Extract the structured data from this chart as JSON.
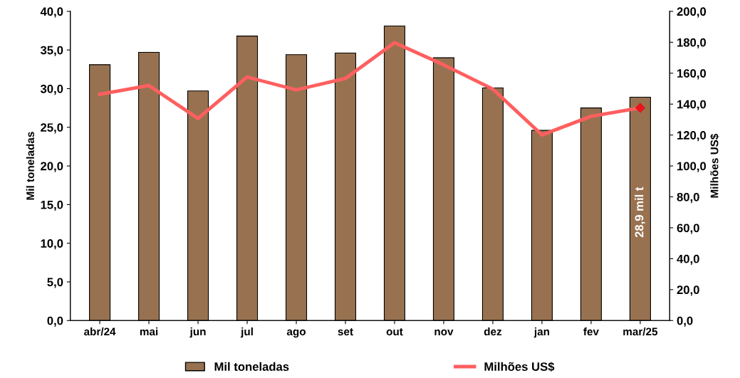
{
  "chart_data": {
    "type": "bar",
    "ylabel": "Mil toneladas",
    "y2label": "Milhões US$",
    "categories": [
      "abr/24",
      "mai",
      "jun",
      "jul",
      "ago",
      "set",
      "out",
      "nov",
      "dez",
      "jan",
      "fev",
      "mar/25"
    ],
    "series": [
      {
        "name": "Mil toneladas",
        "color": "#987250",
        "values": [
          33.1,
          34.7,
          29.7,
          36.8,
          34.4,
          34.6,
          38.1,
          34.0,
          30.1,
          24.6,
          27.5,
          28.9
        ]
      },
      {
        "name": "Milhões US$",
        "type": "line",
        "axis": "y2",
        "color": "#ff5f5f",
        "marker": "none",
        "line_style": "solid",
        "values": [
          146.4,
          152.0,
          130.7,
          157.5,
          149.2,
          156.6,
          179.7,
          165.4,
          149.7,
          120.1,
          132.1,
          137.6
        ]
      },
      {
        "type": "scatter",
        "axis": "y2",
        "color": "#e8141c",
        "marker": "diamond",
        "x": [
          "mar/25"
        ],
        "values": [
          137.6
        ]
      }
    ],
    "ylim": [
      0,
      40
    ],
    "yticks": [
      {
        "value": 0,
        "label": "0,0"
      },
      {
        "value": 5,
        "label": "5,0"
      },
      {
        "value": 10,
        "label": "10,0"
      },
      {
        "value": 15,
        "label": "15,0"
      },
      {
        "value": 20,
        "label": "20,0"
      },
      {
        "value": 25,
        "label": "25,0"
      },
      {
        "value": 30,
        "label": "30,0"
      },
      {
        "value": 35,
        "label": "35,0"
      },
      {
        "value": 40,
        "label": "40,0"
      }
    ],
    "y2lim": [
      0,
      200
    ],
    "y2ticks": [
      {
        "value": 0,
        "label": "0,0"
      },
      {
        "value": 20,
        "label": "20,0"
      },
      {
        "value": 40,
        "label": "40,0"
      },
      {
        "value": 60,
        "label": "60,0"
      },
      {
        "value": 80,
        "label": "80,0"
      },
      {
        "value": 100,
        "label": "100,0"
      },
      {
        "value": 120,
        "label": "120,0"
      },
      {
        "value": 140,
        "label": "140,0"
      },
      {
        "value": 160,
        "label": "160,0"
      },
      {
        "value": 180,
        "label": "180,0"
      },
      {
        "value": 200,
        "label": "200,0"
      }
    ],
    "annotations": [
      "28,9 mil t"
    ],
    "grid": false,
    "legend": "bottom"
  }
}
